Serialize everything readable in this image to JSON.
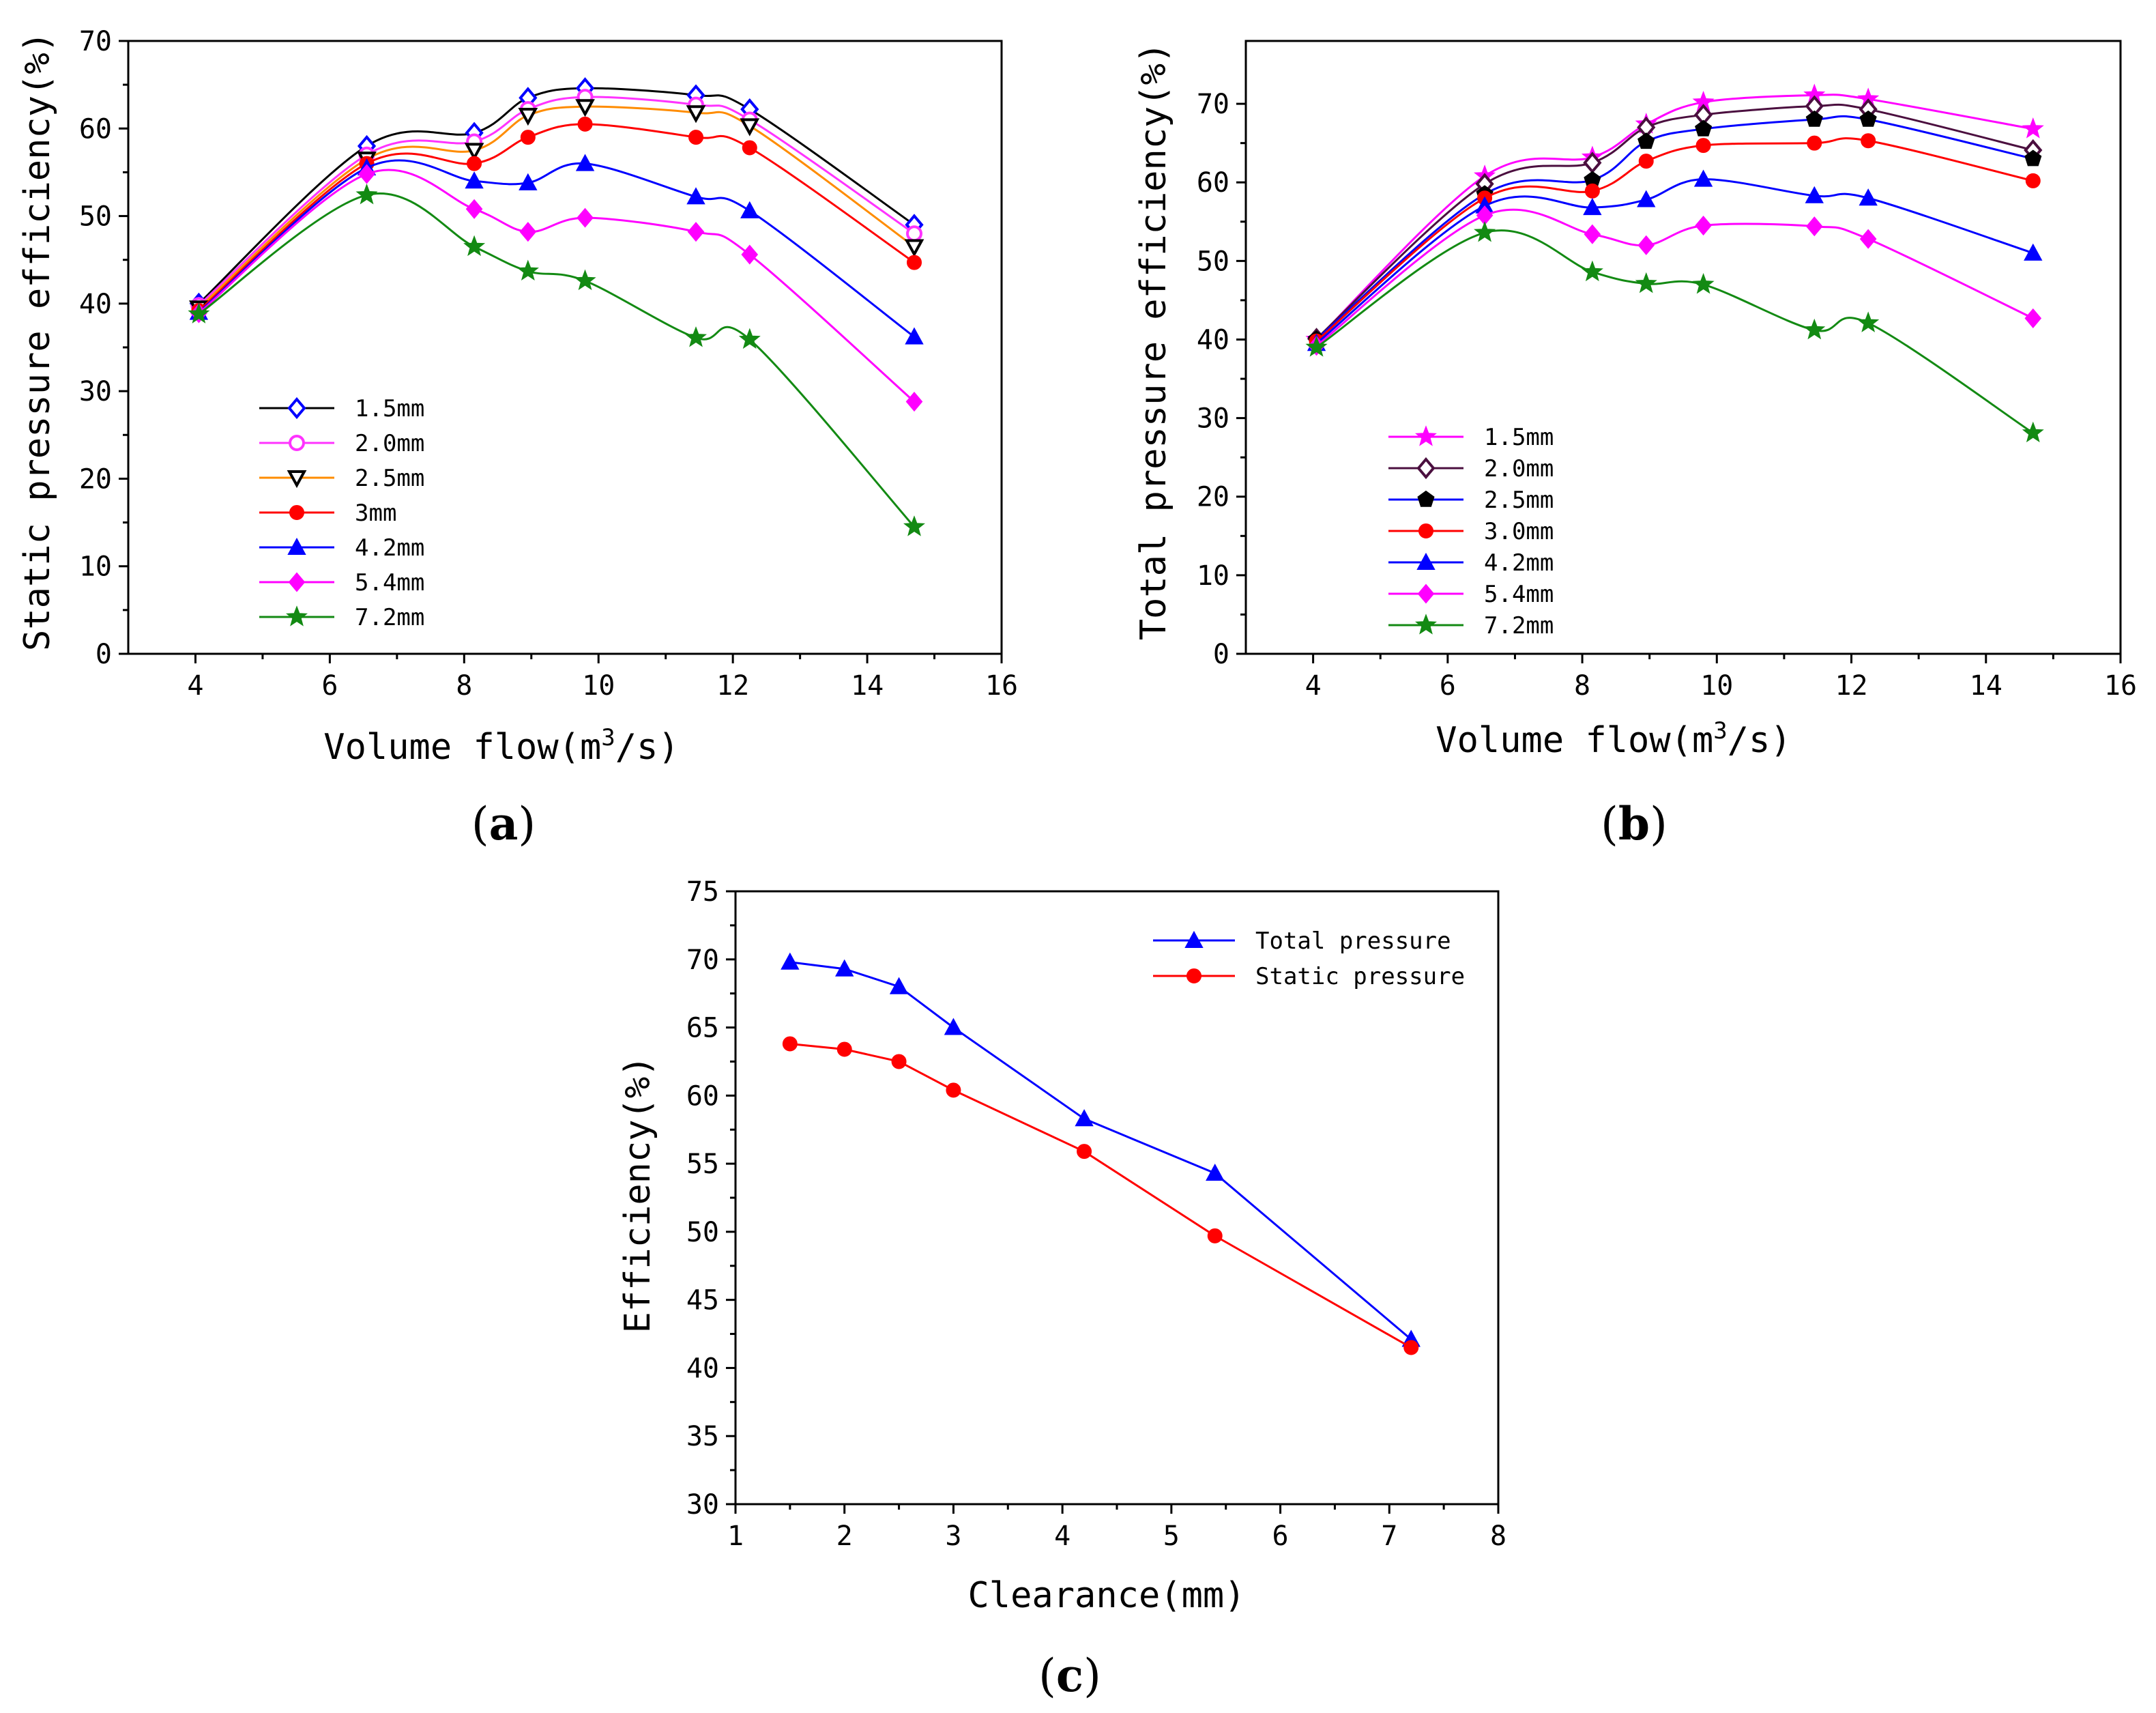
{
  "colors": {
    "black": "#000000",
    "magenta_light": "#ff33ff",
    "orange": "#ff8c00",
    "red": "#ff0000",
    "blue": "#0000ff",
    "magenta": "#ff00ff",
    "green": "#138a13",
    "purple": "#4b0f3f"
  },
  "chart_data": [
    {
      "id": "a",
      "type": "line",
      "panel_label": "a",
      "xlabel": "Volume flow(m",
      "xlabel_sup": "3",
      "xlabel_end": "/s)",
      "ylabel": "Static pressure efficiency(%)",
      "xlim": [
        3,
        16
      ],
      "ylim": [
        0,
        70
      ],
      "xticks": [
        4,
        6,
        8,
        10,
        12,
        14,
        16
      ],
      "yticks": [
        0,
        10,
        20,
        30,
        40,
        50,
        60,
        70
      ],
      "legend_position": "lower-left",
      "x": [
        4.05,
        6.55,
        8.15,
        8.95,
        9.8,
        11.45,
        12.25,
        14.7
      ],
      "series": [
        {
          "name": "1.5mm",
          "marker": "diamond-open",
          "line_color": "#000000",
          "marker_color": "#0000ff",
          "values": [
            40.0,
            58.0,
            59.5,
            63.5,
            64.6,
            63.8,
            62.2,
            49.0
          ]
        },
        {
          "name": "2.0mm",
          "marker": "circle-open",
          "line_color": "#ff33ff",
          "marker_color": "#ff33ff",
          "values": [
            39.8,
            57.0,
            58.5,
            62.2,
            63.6,
            62.7,
            61.0,
            48.0
          ]
        },
        {
          "name": "2.5mm",
          "marker": "triangle-down-open",
          "line_color": "#ff8c00",
          "marker_color": "#000000",
          "values": [
            39.5,
            56.5,
            57.5,
            61.5,
            62.5,
            61.8,
            60.3,
            46.5
          ]
        },
        {
          "name": "3mm",
          "marker": "circle",
          "line_color": "#ff0000",
          "marker_color": "#ff0000",
          "values": [
            39.2,
            56.0,
            56.0,
            59.0,
            60.5,
            59.0,
            57.8,
            44.7
          ]
        },
        {
          "name": "4.2mm",
          "marker": "triangle-up",
          "line_color": "#0000ff",
          "marker_color": "#0000ff",
          "values": [
            39.0,
            55.5,
            54.0,
            53.8,
            56.0,
            52.2,
            50.6,
            36.2
          ]
        },
        {
          "name": "5.4mm",
          "marker": "diamond",
          "line_color": "#ff00ff",
          "marker_color": "#ff00ff",
          "values": [
            38.9,
            54.8,
            50.8,
            48.2,
            49.8,
            48.2,
            45.6,
            28.8
          ]
        },
        {
          "name": "7.2mm",
          "marker": "star",
          "line_color": "#138a13",
          "marker_color": "#138a13",
          "values": [
            38.8,
            52.4,
            46.5,
            43.7,
            42.6,
            36.1,
            35.9,
            14.5
          ]
        }
      ]
    },
    {
      "id": "b",
      "type": "line",
      "panel_label": "b",
      "xlabel": "Volume flow(m",
      "xlabel_sup": "3",
      "xlabel_end": "/s)",
      "ylabel": "Total pressure efficiency(%)",
      "xlim": [
        3,
        16
      ],
      "ylim": [
        0,
        78
      ],
      "xticks": [
        4,
        6,
        8,
        10,
        12,
        14,
        16
      ],
      "yticks": [
        0,
        10,
        20,
        30,
        40,
        50,
        60,
        70
      ],
      "legend_position": "lower-left",
      "x": [
        4.05,
        6.55,
        8.15,
        8.95,
        9.8,
        11.45,
        12.25,
        14.7
      ],
      "series": [
        {
          "name": "1.5mm",
          "marker": "star",
          "line_color": "#ff00ff",
          "marker_color": "#ff00ff",
          "values": [
            40.0,
            60.8,
            63.2,
            67.4,
            70.2,
            71.1,
            70.6,
            66.8
          ]
        },
        {
          "name": "2.0mm",
          "marker": "diamond-open",
          "line_color": "#4b0f3f",
          "marker_color": "#4b0f3f",
          "values": [
            40.1,
            59.8,
            62.5,
            67.0,
            68.6,
            69.7,
            69.3,
            64.1
          ]
        },
        {
          "name": "2.5mm",
          "marker": "pentagon",
          "line_color": "#0000ff",
          "marker_color": "#000000",
          "values": [
            40.0,
            58.5,
            60.3,
            65.2,
            66.8,
            68.0,
            68.0,
            63.0
          ]
        },
        {
          "name": "3.0mm",
          "marker": "circle",
          "line_color": "#ff0000",
          "marker_color": "#ff0000",
          "values": [
            39.8,
            58.0,
            58.9,
            62.7,
            64.7,
            65.0,
            65.3,
            60.2
          ]
        },
        {
          "name": "4.2mm",
          "marker": "triangle-up",
          "line_color": "#0000ff",
          "marker_color": "#0000ff",
          "values": [
            39.5,
            57.0,
            56.8,
            57.8,
            60.4,
            58.3,
            58.0,
            51.0
          ]
        },
        {
          "name": "5.4mm",
          "marker": "diamond",
          "line_color": "#ff00ff",
          "marker_color": "#ff00ff",
          "values": [
            39.2,
            55.8,
            53.4,
            52.0,
            54.5,
            54.4,
            52.8,
            42.7
          ]
        },
        {
          "name": "7.2mm",
          "marker": "star",
          "line_color": "#138a13",
          "marker_color": "#138a13",
          "values": [
            39.0,
            53.6,
            48.6,
            47.1,
            47.0,
            41.2,
            42.1,
            28.1
          ]
        }
      ]
    },
    {
      "id": "c",
      "type": "line",
      "panel_label": "c",
      "xlabel": "Clearance(mm)",
      "ylabel": "Efficiency(%)",
      "xlim": [
        1,
        8
      ],
      "ylim": [
        30,
        75
      ],
      "xticks": [
        1,
        2,
        3,
        4,
        5,
        6,
        7,
        8
      ],
      "yticks": [
        30,
        35,
        40,
        45,
        50,
        55,
        60,
        65,
        70,
        75
      ],
      "legend_position": "top-right",
      "x": [
        1.5,
        2.0,
        2.5,
        3.0,
        4.2,
        5.4,
        7.2
      ],
      "series": [
        {
          "name": "Total pressure",
          "marker": "triangle-up",
          "line_color": "#0000ff",
          "marker_color": "#0000ff",
          "values": [
            69.8,
            69.3,
            68.0,
            65.0,
            58.3,
            54.3,
            42.1
          ]
        },
        {
          "name": "Static pressure",
          "marker": "circle",
          "line_color": "#ff0000",
          "marker_color": "#ff0000",
          "values": [
            63.8,
            63.4,
            62.5,
            60.4,
            55.9,
            49.7,
            41.5
          ]
        }
      ]
    }
  ]
}
